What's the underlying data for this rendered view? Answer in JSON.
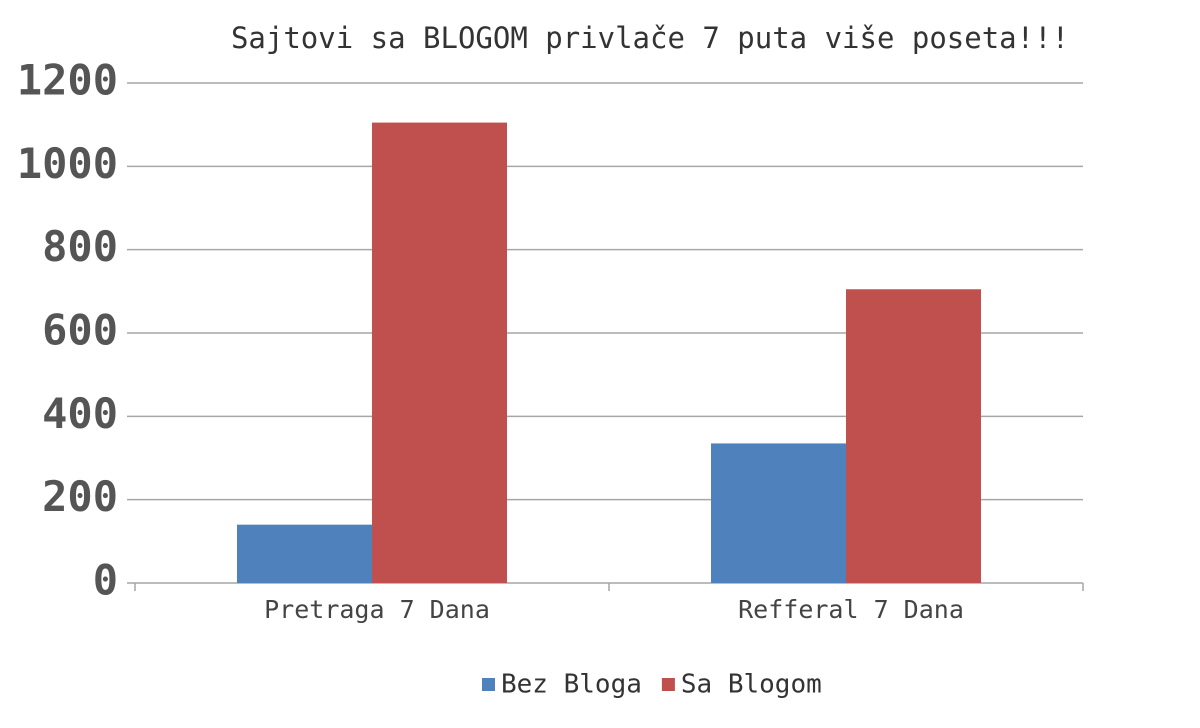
{
  "chart_data": {
    "type": "bar",
    "title": "Sajtovi sa BLOGOM privlače 7 puta više poseta!!!",
    "categories": [
      "Pretraga 7 Dana",
      "Refferal 7 Dana"
    ],
    "series": [
      {
        "name": "Bez Bloga",
        "color": "#4f81bd",
        "values": [
          140,
          335
        ]
      },
      {
        "name": "Sa Blogom",
        "color": "#c0504d",
        "values": [
          1105,
          705
        ]
      }
    ],
    "ylim": [
      0,
      1200
    ],
    "yticks": [
      0,
      200,
      400,
      600,
      800,
      1000,
      1200
    ],
    "grid": true,
    "legend": "bottom"
  }
}
